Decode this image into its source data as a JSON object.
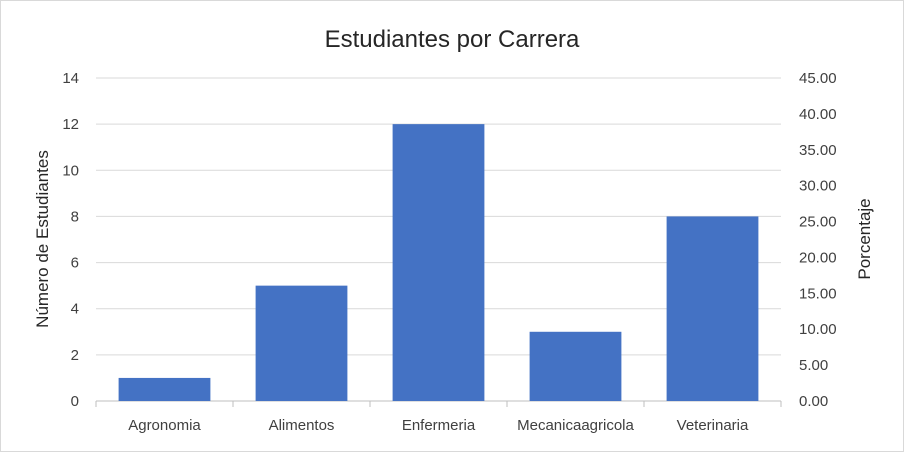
{
  "chart_data": {
    "type": "bar",
    "title": "Estudiantes por Carrera",
    "ylabel": "Número de Estudiantes",
    "y2label": "Porcentaje",
    "categories": [
      "Agronomia",
      "Alimentos",
      "Enfermeria",
      "Mecanicaagricola",
      "Veterinaria"
    ],
    "values": [
      1,
      5,
      12,
      3,
      8
    ],
    "ylim": [
      0,
      14
    ],
    "yticks": [
      "0",
      "2",
      "4",
      "6",
      "8",
      "10",
      "12",
      "14"
    ],
    "y2lim": [
      0,
      45
    ],
    "y2ticks": [
      "0.00",
      "5.00",
      "10.00",
      "15.00",
      "20.00",
      "25.00",
      "30.00",
      "35.00",
      "40.00",
      "45.00"
    ],
    "grid": true,
    "legend": "none",
    "bar_color": "#4472C4"
  }
}
